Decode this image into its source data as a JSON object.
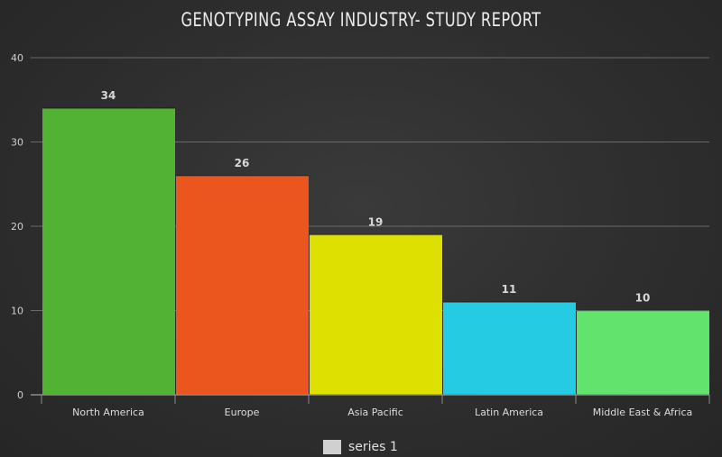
{
  "chart_data": {
    "type": "bar",
    "title": "GENOTYPING ASSAY INDUSTRY- STUDY REPORT",
    "categories": [
      "North America",
      "Europe",
      "Asia Pacific",
      "Latin America",
      "Middle East & Africa"
    ],
    "series": [
      {
        "name": "series 1",
        "values": [
          34,
          26,
          19,
          11,
          10
        ]
      }
    ],
    "colors": [
      "#52b233",
      "#eb561e",
      "#dde000",
      "#25cbe3",
      "#62e36e"
    ],
    "xlabel": "",
    "ylabel": "",
    "ylim": [
      0,
      40
    ],
    "yticks": [
      0,
      10,
      20,
      30,
      40
    ],
    "grid": true,
    "legend_position": "bottom",
    "legend_color": "#d0d0d0"
  }
}
